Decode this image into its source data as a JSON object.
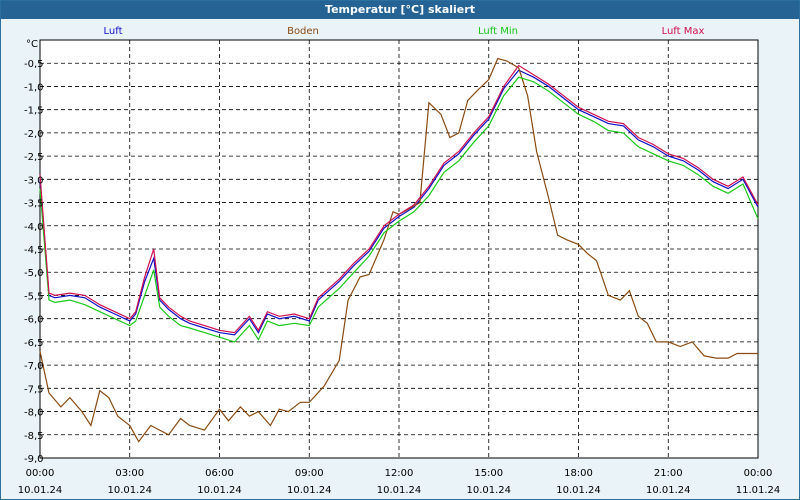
{
  "window": {
    "title": "Temperatur [°C] skaliert"
  },
  "colors": {
    "title_bar": "#256395",
    "background": "#eaf3f8",
    "plot_bg": "#ffffff"
  },
  "chart_data": {
    "type": "line",
    "title": "Temperatur [°C] skaliert",
    "ylabel": "°C",
    "xlabel": "",
    "ylim": [
      -9.0,
      0.0
    ],
    "yticks": [
      "-0,5",
      "-1,0",
      "-1,5",
      "-2,0",
      "-2,5",
      "-3,0",
      "-3,5",
      "-4,0",
      "-4,5",
      "-5,0",
      "-5,5",
      "-6,0",
      "-6,5",
      "-7,0",
      "-7,5",
      "-8,0",
      "-8,5",
      "-9,0"
    ],
    "ytick_values": [
      -0.5,
      -1.0,
      -1.5,
      -2.0,
      -2.5,
      -3.0,
      -3.5,
      -4.0,
      -4.5,
      -5.0,
      -5.5,
      -6.0,
      -6.5,
      -7.0,
      -7.5,
      -8.0,
      -8.5,
      -9.0
    ],
    "xlim": [
      0,
      24
    ],
    "xticks": [
      {
        "value": 0,
        "time": "00:00",
        "date": "10.01.24"
      },
      {
        "value": 3,
        "time": "03:00",
        "date": "10.01.24"
      },
      {
        "value": 6,
        "time": "06:00",
        "date": "10.01.24"
      },
      {
        "value": 9,
        "time": "09:00",
        "date": "10.01.24"
      },
      {
        "value": 12,
        "time": "12:00",
        "date": "10.01.24"
      },
      {
        "value": 15,
        "time": "15:00",
        "date": "10.01.24"
      },
      {
        "value": 18,
        "time": "18:00",
        "date": "10.01.24"
      },
      {
        "value": 21,
        "time": "21:00",
        "date": "10.01.24"
      },
      {
        "value": 24,
        "time": "00:00",
        "date": "11.01.24"
      }
    ],
    "grid": true,
    "legend_placement": "top",
    "series": [
      {
        "name": "Luft",
        "color": "#1010c8",
        "x": [
          0,
          0.3,
          0.5,
          1,
          1.5,
          2,
          2.5,
          3,
          3.2,
          3.5,
          3.8,
          4,
          4.3,
          4.7,
          5,
          5.5,
          6,
          6.5,
          7,
          7.3,
          7.6,
          8,
          8.5,
          9,
          9.3,
          10,
          10.5,
          11,
          11.5,
          12,
          12.5,
          13,
          13.5,
          14,
          14.5,
          15,
          15.5,
          16,
          16.5,
          17,
          17.5,
          18,
          18.5,
          19,
          19.5,
          20,
          20.5,
          21,
          21.5,
          22,
          22.5,
          23,
          23.5,
          24
        ],
        "y": [
          -3.0,
          -5.5,
          -5.55,
          -5.5,
          -5.55,
          -5.75,
          -5.9,
          -6.05,
          -5.9,
          -5.2,
          -4.7,
          -5.6,
          -5.8,
          -6.0,
          -6.1,
          -6.2,
          -6.3,
          -6.35,
          -6.0,
          -6.3,
          -5.9,
          -6.0,
          -5.95,
          -6.05,
          -5.6,
          -5.2,
          -4.85,
          -4.55,
          -4.05,
          -3.8,
          -3.6,
          -3.2,
          -2.7,
          -2.45,
          -2.05,
          -1.7,
          -1.05,
          -0.65,
          -0.8,
          -1.0,
          -1.25,
          -1.5,
          -1.65,
          -1.8,
          -1.85,
          -2.15,
          -2.3,
          -2.5,
          -2.6,
          -2.8,
          -3.05,
          -3.2,
          -3.0,
          -3.6
        ]
      },
      {
        "name": "Boden",
        "color": "#8a4a10",
        "x": [
          0,
          0.3,
          0.7,
          1,
          1.4,
          1.7,
          2,
          2.3,
          2.6,
          3,
          3.3,
          3.7,
          4,
          4.3,
          4.7,
          5,
          5.5,
          6,
          6.3,
          6.7,
          7,
          7.3,
          7.7,
          8,
          8.3,
          8.7,
          9,
          9.5,
          10,
          10.3,
          10.7,
          11,
          11.5,
          11.8,
          12,
          12.3,
          12.7,
          13,
          13.4,
          13.7,
          14,
          14.3,
          14.6,
          15,
          15.3,
          15.6,
          16,
          16.3,
          16.6,
          17,
          17.3,
          17.6,
          18,
          18.3,
          18.6,
          19,
          19.4,
          19.7,
          20,
          20.3,
          20.6,
          21,
          21.4,
          21.8,
          22.2,
          22.6,
          23,
          23.3,
          23.6,
          24
        ],
        "y": [
          -6.7,
          -7.6,
          -7.9,
          -7.7,
          -8.0,
          -8.3,
          -7.55,
          -7.7,
          -8.1,
          -8.3,
          -8.65,
          -8.3,
          -8.4,
          -8.5,
          -8.15,
          -8.3,
          -8.4,
          -7.95,
          -8.2,
          -7.9,
          -8.1,
          -8.0,
          -8.3,
          -7.95,
          -8.0,
          -7.8,
          -7.8,
          -7.45,
          -6.9,
          -5.6,
          -5.1,
          -5.05,
          -4.3,
          -3.7,
          -3.75,
          -3.65,
          -3.5,
          -1.35,
          -1.6,
          -2.1,
          -2.0,
          -1.3,
          -1.1,
          -0.85,
          -0.4,
          -0.45,
          -0.6,
          -1.2,
          -2.4,
          -3.4,
          -4.2,
          -4.3,
          -4.4,
          -4.6,
          -4.75,
          -5.5,
          -5.6,
          -5.4,
          -5.95,
          -6.1,
          -6.5,
          -6.5,
          -6.6,
          -6.5,
          -6.8,
          -6.85,
          -6.85,
          -6.75,
          -6.75,
          -6.75
        ]
      },
      {
        "name": "Luft Min",
        "color": "#18c818",
        "x": [
          0,
          0.3,
          0.5,
          1,
          1.5,
          2,
          2.5,
          3,
          3.2,
          3.5,
          3.8,
          4,
          4.3,
          4.7,
          5,
          5.5,
          6,
          6.5,
          7,
          7.3,
          7.6,
          8,
          8.5,
          9,
          9.3,
          10,
          10.5,
          11,
          11.5,
          12,
          12.5,
          13,
          13.5,
          14,
          14.5,
          15,
          15.5,
          16,
          16.5,
          17,
          17.5,
          18,
          18.5,
          19,
          19.5,
          20,
          20.5,
          21,
          21.5,
          22,
          22.5,
          23,
          23.5,
          24
        ],
        "y": [
          -3.2,
          -5.6,
          -5.65,
          -5.6,
          -5.7,
          -5.85,
          -6.0,
          -6.15,
          -6.05,
          -5.5,
          -4.95,
          -5.75,
          -5.95,
          -6.15,
          -6.2,
          -6.3,
          -6.4,
          -6.5,
          -6.15,
          -6.45,
          -6.05,
          -6.15,
          -6.1,
          -6.15,
          -5.75,
          -5.35,
          -5.0,
          -4.65,
          -4.15,
          -3.9,
          -3.7,
          -3.35,
          -2.85,
          -2.6,
          -2.2,
          -1.85,
          -1.2,
          -0.8,
          -0.9,
          -1.1,
          -1.35,
          -1.6,
          -1.75,
          -1.95,
          -2.0,
          -2.3,
          -2.45,
          -2.6,
          -2.7,
          -2.9,
          -3.15,
          -3.3,
          -3.1,
          -3.85
        ]
      },
      {
        "name": "Luft Max",
        "color": "#d01050",
        "x": [
          0,
          0.3,
          0.5,
          1,
          1.5,
          2,
          2.5,
          3,
          3.2,
          3.5,
          3.8,
          4,
          4.3,
          4.7,
          5,
          5.5,
          6,
          6.5,
          7,
          7.3,
          7.6,
          8,
          8.5,
          9,
          9.3,
          10,
          10.5,
          11,
          11.5,
          12,
          12.5,
          13,
          13.5,
          14,
          14.5,
          15,
          15.5,
          16,
          16.5,
          17,
          17.5,
          18,
          18.5,
          19,
          19.5,
          20,
          20.5,
          21,
          21.5,
          22,
          22.5,
          23,
          23.5,
          24
        ],
        "y": [
          -2.9,
          -5.45,
          -5.5,
          -5.45,
          -5.5,
          -5.7,
          -5.85,
          -6.0,
          -5.85,
          -5.1,
          -4.5,
          -5.55,
          -5.75,
          -5.95,
          -6.05,
          -6.15,
          -6.25,
          -6.3,
          -5.95,
          -6.25,
          -5.85,
          -5.95,
          -5.9,
          -6.0,
          -5.55,
          -5.15,
          -4.8,
          -4.5,
          -4.0,
          -3.75,
          -3.55,
          -3.15,
          -2.65,
          -2.4,
          -2.0,
          -1.65,
          -1.0,
          -0.55,
          -0.75,
          -0.95,
          -1.2,
          -1.45,
          -1.6,
          -1.75,
          -1.8,
          -2.1,
          -2.25,
          -2.45,
          -2.55,
          -2.75,
          -3.0,
          -3.15,
          -2.95,
          -3.55
        ]
      }
    ]
  }
}
